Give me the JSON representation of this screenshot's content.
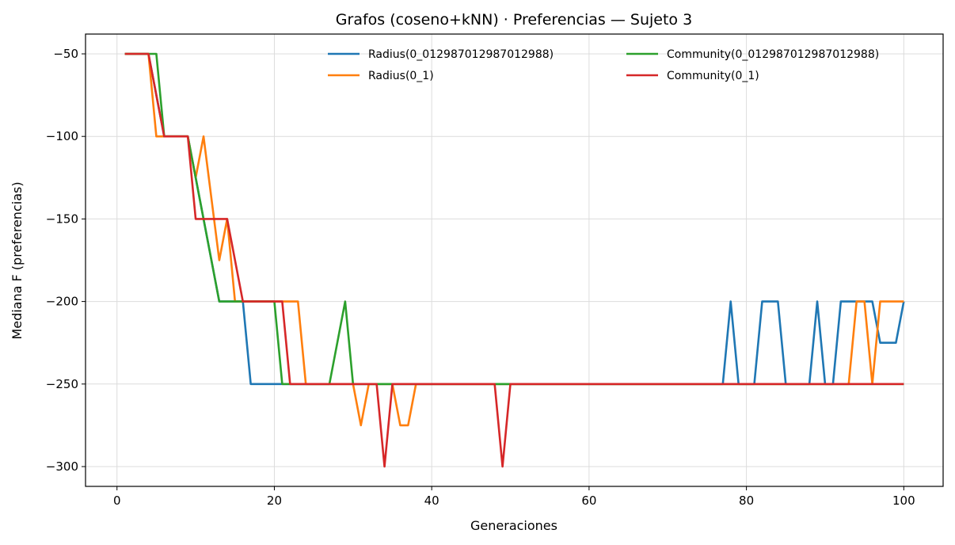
{
  "chart_data": {
    "type": "line",
    "title": "Grafos (coseno+kNN) · Preferencias — Sujeto 3",
    "xlabel": "Generaciones",
    "ylabel": "Mediana F (preferencias)",
    "xlim": [
      -4,
      105
    ],
    "ylim": [
      -312,
      -38
    ],
    "xticks": [
      0,
      20,
      40,
      60,
      80,
      100
    ],
    "yticks": [
      -50,
      -100,
      -150,
      -200,
      -250,
      -300
    ],
    "xtick_labels": [
      "0",
      "20",
      "40",
      "60",
      "80",
      "100"
    ],
    "ytick_labels": [
      "−50",
      "−100",
      "−150",
      "−200",
      "−250",
      "−300"
    ],
    "grid": true,
    "legend": {
      "placement": "top-right",
      "columns": 2
    },
    "series": [
      {
        "name": "Radius(0_012987012987012988)",
        "color": "#1f77b4",
        "points": [
          [
            1,
            -50
          ],
          [
            4,
            -50
          ],
          [
            6,
            -100
          ],
          [
            9,
            -100
          ],
          [
            10,
            -125
          ],
          [
            13,
            -200
          ],
          [
            16,
            -200
          ],
          [
            17,
            -250
          ],
          [
            77,
            -250
          ],
          [
            78,
            -200
          ],
          [
            79,
            -250
          ],
          [
            81,
            -250
          ],
          [
            82,
            -200
          ],
          [
            84,
            -200
          ],
          [
            85,
            -250
          ],
          [
            88,
            -250
          ],
          [
            89,
            -200
          ],
          [
            90,
            -250
          ],
          [
            91,
            -250
          ],
          [
            92,
            -200
          ],
          [
            96,
            -200
          ],
          [
            97,
            -225
          ],
          [
            99,
            -225
          ],
          [
            100,
            -200
          ]
        ]
      },
      {
        "name": "Radius(0_1)",
        "color": "#ff7f0e",
        "points": [
          [
            1,
            -50
          ],
          [
            4,
            -50
          ],
          [
            5,
            -100
          ],
          [
            9,
            -100
          ],
          [
            10,
            -125
          ],
          [
            11,
            -100
          ],
          [
            13,
            -175
          ],
          [
            14,
            -150
          ],
          [
            15,
            -200
          ],
          [
            23,
            -200
          ],
          [
            24,
            -250
          ],
          [
            30,
            -250
          ],
          [
            31,
            -275
          ],
          [
            32,
            -250
          ],
          [
            35,
            -250
          ],
          [
            36,
            -275
          ],
          [
            37,
            -275
          ],
          [
            38,
            -250
          ],
          [
            93,
            -250
          ],
          [
            94,
            -200
          ],
          [
            95,
            -200
          ],
          [
            96,
            -250
          ],
          [
            97,
            -200
          ],
          [
            100,
            -200
          ]
        ]
      },
      {
        "name": "Community(0_012987012987012988)",
        "color": "#2ca02c",
        "points": [
          [
            1,
            -50
          ],
          [
            5,
            -50
          ],
          [
            6,
            -100
          ],
          [
            9,
            -100
          ],
          [
            13,
            -200
          ],
          [
            20,
            -200
          ],
          [
            21,
            -250
          ],
          [
            27,
            -250
          ],
          [
            29,
            -200
          ],
          [
            30,
            -250
          ],
          [
            100,
            -250
          ]
        ]
      },
      {
        "name": "Community(0_1)",
        "color": "#d62728",
        "points": [
          [
            1,
            -50
          ],
          [
            4,
            -50
          ],
          [
            6,
            -100
          ],
          [
            9,
            -100
          ],
          [
            10,
            -150
          ],
          [
            14,
            -150
          ],
          [
            16,
            -200
          ],
          [
            21,
            -200
          ],
          [
            22,
            -250
          ],
          [
            33,
            -250
          ],
          [
            34,
            -300
          ],
          [
            35,
            -250
          ],
          [
            48,
            -250
          ],
          [
            49,
            -300
          ],
          [
            50,
            -250
          ],
          [
            100,
            -250
          ]
        ]
      }
    ]
  }
}
